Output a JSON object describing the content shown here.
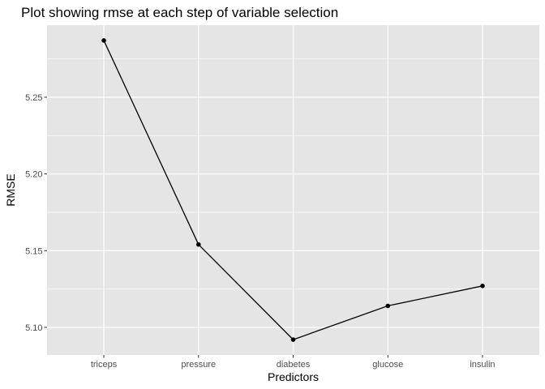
{
  "chart_data": {
    "type": "line",
    "title": "Plot showing rmse at each step of variable selection",
    "xlabel": "Predictors",
    "ylabel": "RMSE",
    "categories": [
      "triceps",
      "pressure",
      "diabetes",
      "glucose",
      "insulin"
    ],
    "values": [
      5.287,
      5.154,
      5.092,
      5.114,
      5.127
    ],
    "yticks": [
      "5.10",
      "5.15",
      "5.20",
      "5.25"
    ],
    "ylim": [
      5.082,
      5.297
    ],
    "grid": true,
    "colors": {
      "panel": "#e5e5e5",
      "grid": "#ffffff",
      "line": "#000000",
      "point": "#000000"
    }
  }
}
